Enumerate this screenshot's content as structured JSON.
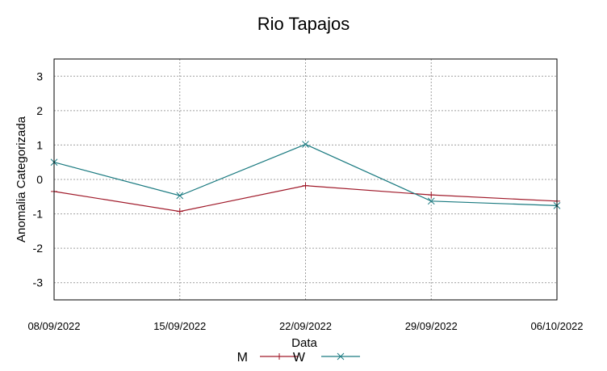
{
  "chart_data": {
    "type": "line",
    "title": "Rio Tapajos",
    "xlabel": "Data",
    "ylabel": "Anomalia Categorizada",
    "categories": [
      "08/09/2022",
      "15/09/2022",
      "22/09/2022",
      "29/09/2022",
      "06/10/2022"
    ],
    "ylim": [
      -3.5,
      3.5
    ],
    "yticks": [
      -3,
      -2,
      -1,
      0,
      1,
      2,
      3
    ],
    "grid": true,
    "legend_position": "bottom",
    "series": [
      {
        "name": "M",
        "color": "#a01a2a",
        "marker": "plus",
        "values": [
          -0.35,
          -0.93,
          -0.18,
          -0.45,
          -0.63
        ]
      },
      {
        "name": "W",
        "color": "#1a7a80",
        "marker": "cross",
        "values": [
          0.5,
          -0.47,
          1.02,
          -0.63,
          -0.76
        ]
      }
    ]
  }
}
